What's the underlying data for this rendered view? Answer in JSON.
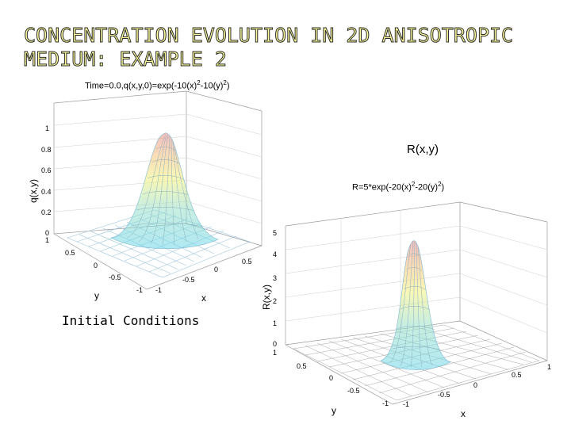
{
  "slide": {
    "title_line1": "CONCENTRATION EVOLUTION IN 2D ANISOTROPIC",
    "title_line2": "MEDIUM: EXAMPLE 2"
  },
  "plot1": {
    "title_prefix": "Time=0.0,q(x,y,0)=exp(-10(x)",
    "title_exp1": "2",
    "title_mid": "-10(y)",
    "title_exp2": "2",
    "title_suffix": ")",
    "zlabel": "q(x,y)",
    "xlabel": "x",
    "ylabel": "y",
    "z_ticks": [
      "1",
      "0.8",
      "0.6",
      "0.4",
      "0.2",
      "0"
    ],
    "y_ticks": [
      "1",
      "0.5",
      "0",
      "-0.5",
      "-1"
    ],
    "x_ticks": [
      "0.5",
      "0",
      "-0.5",
      "-1"
    ],
    "caption": "Initial Conditions"
  },
  "plot2": {
    "header": "R(x,y)",
    "eq_prefix": "R=5*exp(-20(x)",
    "eq_exp1": "2",
    "eq_mid": "-20(y)",
    "eq_exp2": "2",
    "eq_suffix": ")",
    "zlabel": "R(x,y)",
    "xlabel": "x",
    "ylabel": "y",
    "z_ticks": [
      "5",
      "4",
      "3",
      "2",
      "1",
      "0"
    ],
    "y_ticks": [
      "1",
      "0.5",
      "0",
      "-0.5",
      "-1"
    ],
    "x_ticks": [
      "1",
      "0.5",
      "0",
      "-0.5",
      "-1"
    ]
  },
  "colors": {
    "title_fill": "#ffff99",
    "title_stroke": "#2a2a2a"
  }
}
